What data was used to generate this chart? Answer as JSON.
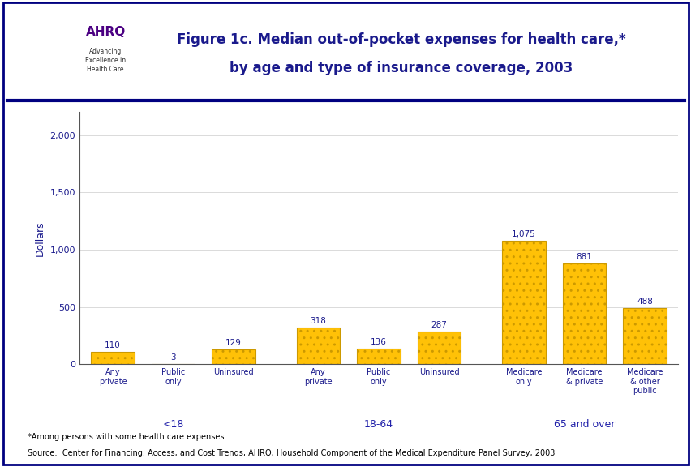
{
  "title_line1": "Figure 1c. Median out-of-pocket expenses for health care,*",
  "title_line2": "by age and type of insurance coverage, 2003",
  "ylabel": "Dollars",
  "bar_values": [
    110,
    3,
    129,
    318,
    136,
    287,
    1075,
    881,
    488
  ],
  "bar_labels": [
    "Any\nprivate",
    "Public\nonly",
    "Uninsured",
    "Any\nprivate",
    "Public\nonly",
    "Uninsured",
    "Medicare\nonly",
    "Medicare\n& private",
    "Medicare\n& other\npublic"
  ],
  "group_labels": [
    "<18",
    "18-64",
    "65 and over"
  ],
  "group_label_color": "#2222AA",
  "bar_positions": [
    0,
    1,
    2,
    3.4,
    4.4,
    5.4,
    6.8,
    7.8,
    8.8
  ],
  "group_centers": [
    1.0,
    4.4,
    7.8
  ],
  "bar_color": "#FFC107",
  "bar_edgecolor": "#CC9900",
  "ylim": [
    0,
    2200
  ],
  "yticks": [
    0,
    500,
    1000,
    1500,
    2000
  ],
  "ytick_labels": [
    "0",
    "500",
    "1,000",
    "1,500",
    "2,000"
  ],
  "title_color": "#1A1A8C",
  "label_color": "#1A1A8C",
  "value_label_color": "#1A1A8C",
  "background_color": "#FFFFFF",
  "border_color": "#000080",
  "footer_line1": "*Among persons with some health care expenses.",
  "footer_line2": "Source:  Center for Financing, Access, and Cost Trends, AHRQ, Household Component of the Medical Expenditure Panel Survey, 2003",
  "title_fontsize": 12,
  "label_fontsize": 7,
  "value_fontsize": 7.5,
  "group_label_fontsize": 9,
  "ylabel_fontsize": 9,
  "footer_fontsize": 7,
  "logo_box_color": "#3399CC",
  "logo_text_color": "#4B0082",
  "header_separator_color": "#000080",
  "header_separator_linewidth": 3
}
